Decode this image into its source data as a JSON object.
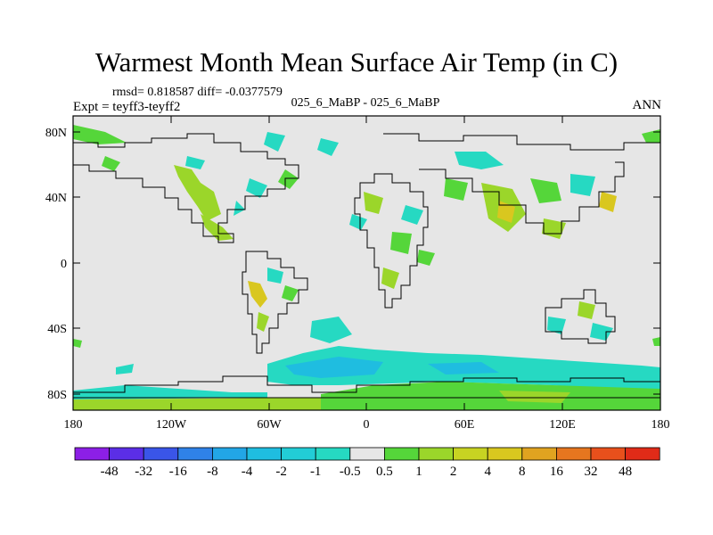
{
  "title": "Warmest Month Mean Surface Air Temp (in C)",
  "stats": "rmsd= 0.818587 diff= -0.0377579",
  "experiment": "Expt = teyff3-teyff2",
  "center_label": "025_6_MaBP - 025_6_MaBP",
  "period": "ANN",
  "map": {
    "lat_ticks": [
      "80N",
      "40N",
      "0",
      "40S",
      "80S"
    ],
    "lon_ticks": [
      "180",
      "120W",
      "60W",
      "0",
      "60E",
      "120E",
      "180"
    ]
  },
  "colorbar": {
    "labels": [
      "-48",
      "-32",
      "-16",
      "-8",
      "-4",
      "-2",
      "-1",
      "-0.5",
      "0.5",
      "1",
      "2",
      "4",
      "8",
      "16",
      "32",
      "48"
    ],
    "colors": [
      "#8c1fe6",
      "#5b2ee6",
      "#3a55e8",
      "#2f82e8",
      "#22a6e6",
      "#1fbde0",
      "#22cdd6",
      "#26d9c2",
      "#e6e6e6",
      "#55d63a",
      "#9bd62a",
      "#c7d322",
      "#d9c71f",
      "#e0a320",
      "#e6761f",
      "#e8501c",
      "#e02b18"
    ]
  }
}
